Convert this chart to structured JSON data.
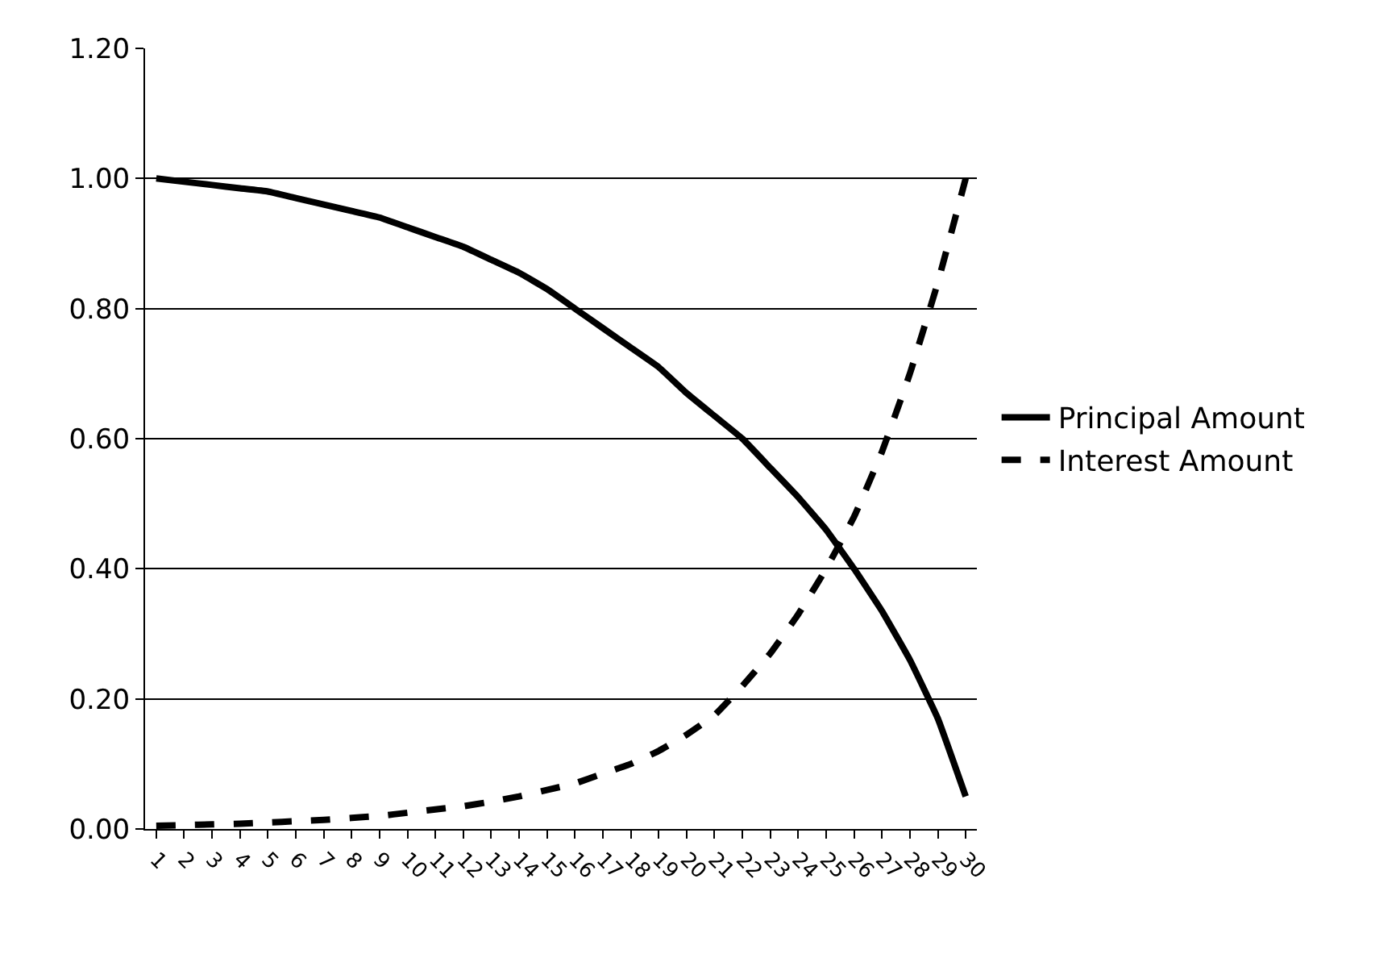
{
  "chart_data": {
    "type": "line",
    "categories": [
      "1",
      "2",
      "3",
      "4",
      "5",
      "6",
      "7",
      "8",
      "9",
      "10",
      "11",
      "12",
      "13",
      "14",
      "15",
      "16",
      "17",
      "18",
      "19",
      "20",
      "21",
      "22",
      "23",
      "24",
      "25",
      "26",
      "27",
      "28",
      "29",
      "30"
    ],
    "series": [
      {
        "name": "Principal Amount",
        "color": "#000000",
        "line_style": "solid",
        "values": [
          1.0,
          0.995,
          0.99,
          0.985,
          0.98,
          0.97,
          0.96,
          0.95,
          0.94,
          0.925,
          0.91,
          0.895,
          0.875,
          0.855,
          0.83,
          0.8,
          0.77,
          0.74,
          0.71,
          0.67,
          0.635,
          0.6,
          0.555,
          0.51,
          0.46,
          0.4,
          0.335,
          0.26,
          0.17,
          0.05
        ]
      },
      {
        "name": "Interest Amount",
        "color": "#000000",
        "line_style": "dashed",
        "values": [
          0.005,
          0.006,
          0.007,
          0.008,
          0.01,
          0.012,
          0.014,
          0.017,
          0.02,
          0.025,
          0.03,
          0.035,
          0.042,
          0.05,
          0.06,
          0.07,
          0.085,
          0.1,
          0.12,
          0.145,
          0.175,
          0.22,
          0.27,
          0.33,
          0.4,
          0.48,
          0.58,
          0.7,
          0.84,
          1.0
        ]
      }
    ],
    "ylim": [
      0,
      1.2
    ],
    "yticks": [
      {
        "value": 0,
        "label": "0.00"
      },
      {
        "value": 0.2,
        "label": "0.20"
      },
      {
        "value": 0.4,
        "label": "0.40"
      },
      {
        "value": 0.6,
        "label": "0.60"
      },
      {
        "value": 0.8,
        "label": "0.80"
      },
      {
        "value": 1.0,
        "label": "1.00"
      },
      {
        "value": 1.2,
        "label": "1.20"
      }
    ],
    "grid": "y",
    "legend": "right",
    "marker": "none"
  }
}
